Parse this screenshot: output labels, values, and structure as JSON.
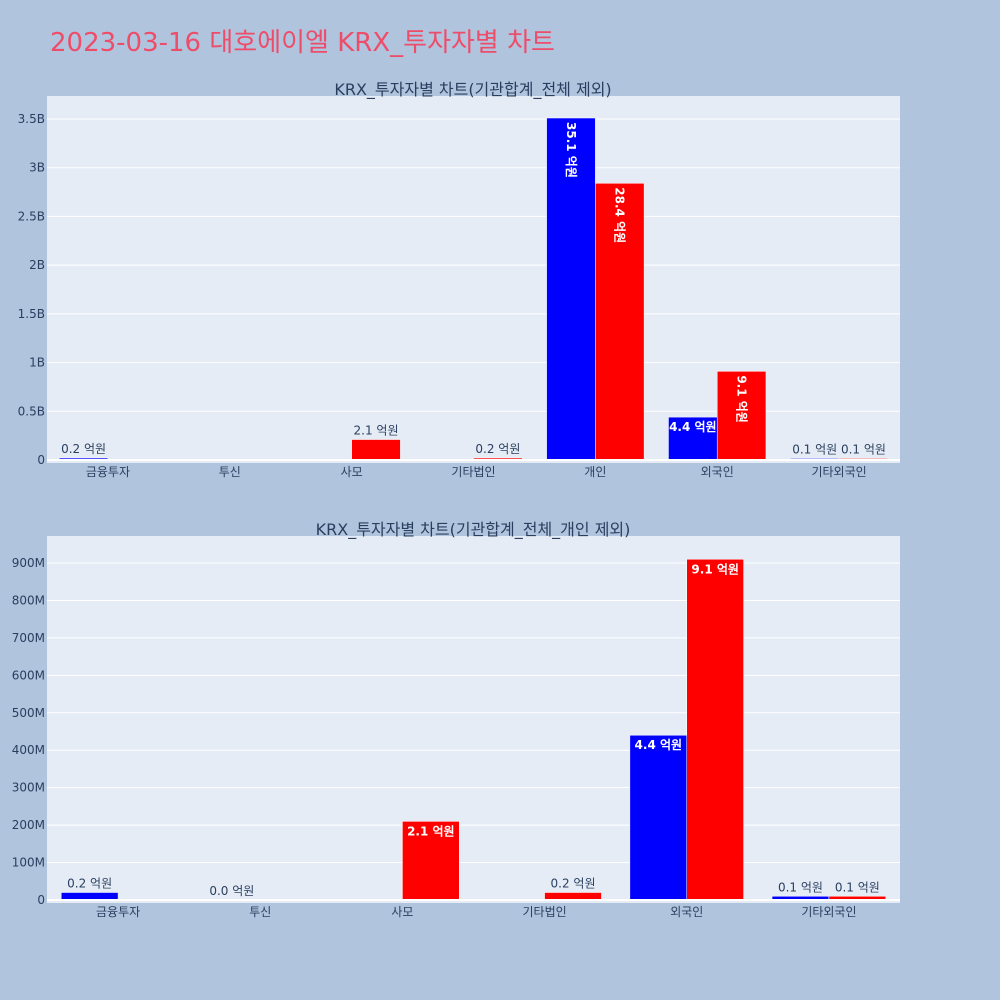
{
  "page": {
    "title": "2023-03-16 대호에이엘 KRX_투자자별 차트"
  },
  "colors": {
    "background": "#b0c4de",
    "plot_bg": "#e5ecf6",
    "buy": "#0000ff",
    "sell": "#ff0000",
    "title": "#ee4d6a",
    "text": "#2a3f5f"
  },
  "chart_data": [
    {
      "type": "bar",
      "title": "KRX_투자자별 차트(기관합계_전체 제외)",
      "categories": [
        "금융투자",
        "투신",
        "사모",
        "기타법인",
        "개인",
        "외국인",
        "기타외국인"
      ],
      "ylim": [
        0,
        3700000000
      ],
      "yticks": [
        0,
        500000000,
        1000000000,
        1500000000,
        2000000000,
        2500000000,
        3000000000,
        3500000000
      ],
      "ytick_labels": [
        "0",
        "0.5B",
        "1B",
        "1.5B",
        "2B",
        "2.5B",
        "3B",
        "3.5B"
      ],
      "label_rotation": 90,
      "series": [
        {
          "color": "#0000ff",
          "values": [
            20000000,
            0,
            0,
            0,
            3510000000,
            440000000,
            10000000
          ],
          "labels": [
            "0.2 억원",
            "",
            "",
            "",
            "35.1 억원",
            "4.4 억원",
            "0.1 억원"
          ]
        },
        {
          "color": "#ff0000",
          "values": [
            0,
            0,
            210000000,
            20000000,
            2840000000,
            910000000,
            10000000
          ],
          "labels": [
            "",
            "",
            "2.1 억원",
            "0.2 억원",
            "28.4 억원",
            "9.1 억원",
            "0.1 억원"
          ]
        }
      ]
    },
    {
      "type": "bar",
      "title": "KRX_투자자별 차트(기관합계_전체_개인 제외)",
      "categories": [
        "금융투자",
        "투신",
        "사모",
        "기타법인",
        "외국인",
        "기타외국인"
      ],
      "ylim": [
        0,
        960000000
      ],
      "yticks": [
        0,
        100000000,
        200000000,
        300000000,
        400000000,
        500000000,
        600000000,
        700000000,
        800000000,
        900000000
      ],
      "ytick_labels": [
        "0",
        "100M",
        "200M",
        "300M",
        "400M",
        "500M",
        "600M",
        "700M",
        "800M",
        "900M"
      ],
      "label_rotation": 0,
      "series": [
        {
          "color": "#0000ff",
          "values": [
            20000000,
            0,
            0,
            0,
            440000000,
            10000000
          ],
          "labels": [
            "0.2 억원",
            "0.0 억원",
            "",
            "",
            "4.4 억원",
            "0.1 억원"
          ]
        },
        {
          "color": "#ff0000",
          "values": [
            0,
            0,
            210000000,
            20000000,
            910000000,
            10000000
          ],
          "labels": [
            "",
            "",
            "2.1 억원",
            "0.2 억원",
            "9.1 억원",
            "0.1 억원"
          ]
        }
      ]
    }
  ]
}
